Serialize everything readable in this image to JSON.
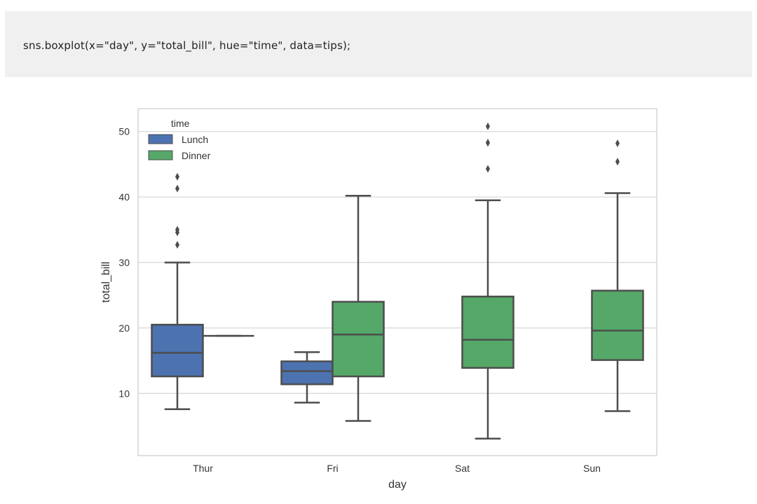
{
  "code": {
    "text": "sns.boxplot(x=\"day\", y=\"total_bill\", hue=\"time\", data=tips);"
  },
  "chart_data": {
    "type": "boxplot",
    "xlabel": "day",
    "ylabel": "total_bill",
    "categories": [
      "Thur",
      "Fri",
      "Sat",
      "Sun"
    ],
    "yticks": [
      10,
      20,
      30,
      40,
      50
    ],
    "ylim": [
      0.5,
      53.5
    ],
    "grid": true,
    "legend": {
      "title": "time",
      "placement": "top-left",
      "entries": [
        "Lunch",
        "Dinner"
      ]
    },
    "series": [
      {
        "name": "Lunch",
        "color": "#4c72b0",
        "boxes": [
          {
            "category": "Thur",
            "whisker_low": 7.6,
            "q1": 12.6,
            "median": 16.2,
            "q3": 20.5,
            "whisker_high": 30.0,
            "outliers": [
              32.7,
              34.6,
              35.0,
              41.3,
              43.1
            ]
          },
          {
            "category": "Fri",
            "whisker_low": 8.6,
            "q1": 11.4,
            "median": 13.4,
            "q3": 14.9,
            "whisker_high": 16.3,
            "outliers": []
          }
        ]
      },
      {
        "name": "Dinner",
        "color": "#55a868",
        "boxes": [
          {
            "category": "Thur",
            "whisker_low": 18.8,
            "q1": 18.8,
            "median": 18.8,
            "q3": 18.8,
            "whisker_high": 18.8,
            "outliers": []
          },
          {
            "category": "Fri",
            "whisker_low": 5.8,
            "q1": 12.6,
            "median": 19.0,
            "q3": 24.0,
            "whisker_high": 40.2,
            "outliers": []
          },
          {
            "category": "Sat",
            "whisker_low": 3.1,
            "q1": 13.9,
            "median": 18.2,
            "q3": 24.8,
            "whisker_high": 39.5,
            "outliers": [
              44.3,
              48.3,
              48.3,
              50.8
            ]
          },
          {
            "category": "Sun",
            "whisker_low": 7.3,
            "q1": 15.1,
            "median": 19.6,
            "q3": 25.7,
            "whisker_high": 40.6,
            "outliers": [
              45.4,
              48.2
            ]
          }
        ]
      }
    ]
  }
}
